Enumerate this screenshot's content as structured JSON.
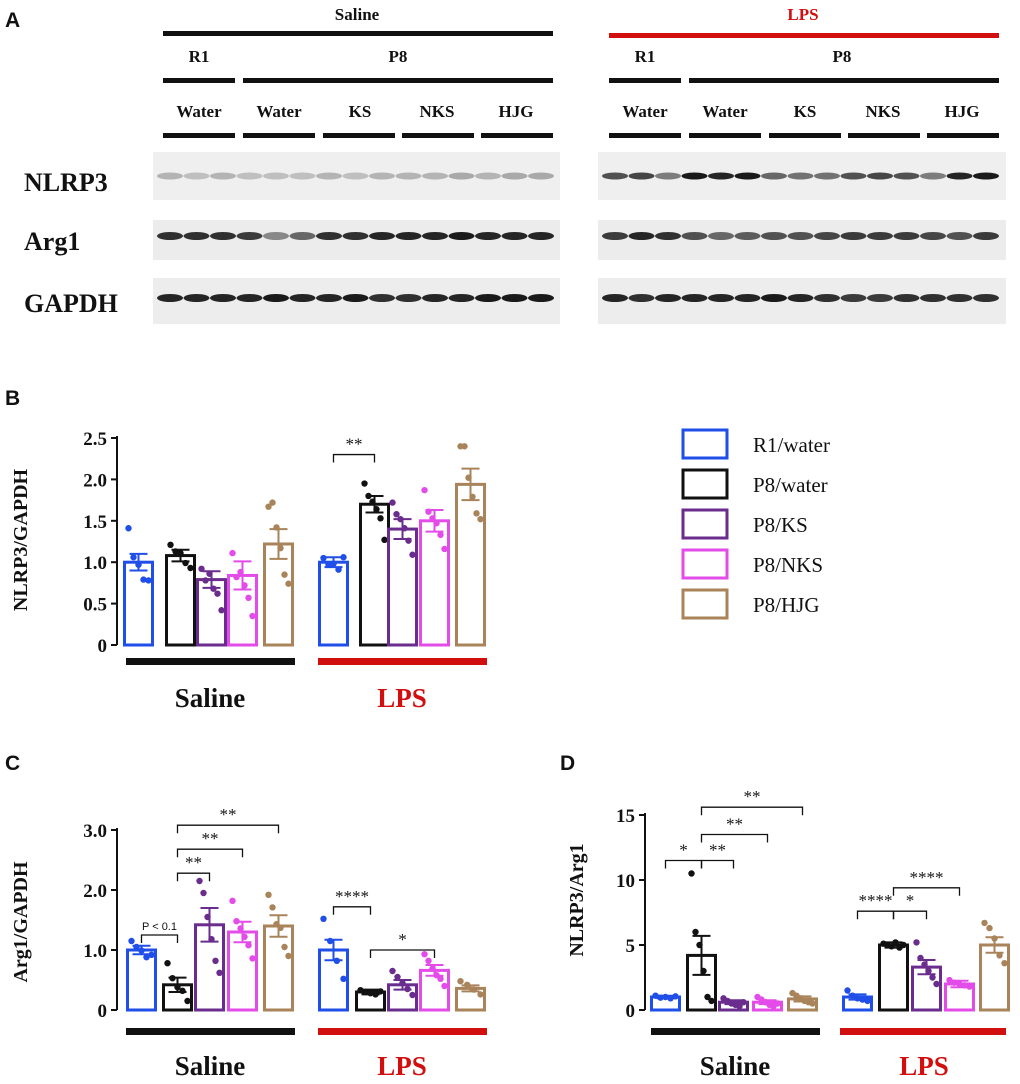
{
  "colors": {
    "R1/water": "#1f4ee8",
    "P8/water": "#111111",
    "P8/KS": "#6a2d8e",
    "P8/NKS": "#e34ce8",
    "P8/HJG": "#a9835a",
    "saline_bar": "#111111",
    "lps_bar": "#d10f0f"
  },
  "panel_a": {
    "letter": "A",
    "saline": {
      "label": "Saline",
      "r1": "R1",
      "p8": "P8",
      "lanes": [
        "Water",
        "Water",
        "KS",
        "NKS",
        "HJG"
      ]
    },
    "lps": {
      "label": "LPS",
      "r1": "R1",
      "p8": "P8",
      "lanes": [
        "Water",
        "Water",
        "KS",
        "NKS",
        "HJG"
      ]
    },
    "rows": [
      "NLRP3",
      "Arg1",
      "GAPDH"
    ]
  },
  "legend": [
    "R1/water",
    "P8/water",
    "P8/KS",
    "P8/NKS",
    "P8/HJG"
  ],
  "chart_data": [
    {
      "id": "B",
      "letter": "B",
      "type": "bar",
      "ylabel": "NLRP3/GAPDH",
      "ylim": [
        0,
        2.5
      ],
      "yticks": [
        "0",
        "0.5",
        "1.0",
        "1.5",
        "2.0",
        "2.5"
      ],
      "ytick_values": [
        0,
        0.5,
        1.0,
        1.5,
        2.0,
        2.5
      ],
      "groups": [
        "Saline",
        "LPS"
      ],
      "series": [
        "R1/water",
        "P8/water",
        "P8/KS",
        "P8/NKS",
        "P8/HJG"
      ],
      "means": [
        [
          1.0,
          1.08,
          0.79,
          0.84,
          1.22
        ],
        [
          1.0,
          1.7,
          1.4,
          1.5,
          1.94
        ]
      ],
      "sem": [
        [
          0.1,
          0.07,
          0.1,
          0.17,
          0.18
        ],
        [
          0.06,
          0.1,
          0.12,
          0.13,
          0.19
        ]
      ],
      "points": [
        [
          [
            1.41,
            1.06,
            0.97,
            0.79,
            0.78
          ],
          [
            1.21,
            1.13,
            1.11,
            0.99,
            0.93
          ],
          [
            0.92,
            0.78,
            0.86,
            0.68,
            0.62,
            0.42
          ],
          [
            1.11,
            0.82,
            0.88,
            0.72,
            0.57,
            0.35
          ],
          [
            1.67,
            1.72,
            1.42,
            1.17,
            0.85,
            0.74
          ]
        ],
        [
          [
            1.05,
            0.97,
            0.98,
            0.91,
            1.06
          ],
          [
            1.95,
            1.8,
            1.73,
            1.64,
            1.53,
            1.27
          ],
          [
            1.72,
            1.58,
            1.52,
            1.41,
            1.26,
            1.09
          ],
          [
            1.87,
            1.61,
            1.53,
            1.47,
            1.33,
            1.16
          ],
          [
            2.4,
            2.4,
            2.02,
            1.79,
            1.59,
            1.52
          ]
        ]
      ],
      "significance": [
        {
          "g1": 1,
          "i1": 0,
          "g2": 1,
          "i2": 1,
          "label": "**",
          "y": 2.3
        }
      ]
    },
    {
      "id": "C",
      "letter": "C",
      "type": "bar",
      "ylabel": "Arg1/GAPDH",
      "ylim": [
        0,
        3.0
      ],
      "yticks": [
        "0",
        "1.0",
        "2.0",
        "3.0"
      ],
      "ytick_values": [
        0,
        1.0,
        2.0,
        3.0
      ],
      "groups": [
        "Saline",
        "LPS"
      ],
      "series": [
        "R1/water",
        "P8/water",
        "P8/KS",
        "P8/NKS",
        "P8/HJG"
      ],
      "means": [
        [
          1.0,
          0.42,
          1.42,
          1.3,
          1.4
        ],
        [
          1.0,
          0.3,
          0.42,
          0.66,
          0.36
        ]
      ],
      "sem": [
        [
          0.07,
          0.12,
          0.28,
          0.17,
          0.18
        ],
        [
          0.17,
          0.04,
          0.08,
          0.09,
          0.05
        ]
      ],
      "points": [
        [
          [
            1.15,
            1.05,
            0.99,
            0.88,
            0.92
          ],
          [
            0.78,
            0.53,
            0.38,
            0.32,
            0.15
          ],
          [
            2.15,
            1.95,
            1.55,
            1.18,
            0.82,
            0.62
          ],
          [
            1.82,
            1.48,
            1.36,
            1.22,
            1.08,
            0.86
          ],
          [
            1.92,
            1.71,
            1.43,
            1.37,
            1.05,
            0.9
          ]
        ],
        [
          [
            1.52,
            1.15,
            0.82,
            0.52
          ],
          [
            0.33,
            0.3,
            0.28,
            0.26,
            0.31
          ],
          [
            0.65,
            0.55,
            0.45,
            0.35,
            0.25
          ],
          [
            0.93,
            0.82,
            0.69,
            0.58,
            0.52,
            0.4
          ],
          [
            0.48,
            0.42,
            0.34,
            0.26
          ]
        ]
      ],
      "significance": [
        {
          "g1": 0,
          "i1": 0,
          "g2": 0,
          "i2": 1,
          "label": "P < 0.1",
          "y": 1.25,
          "small": true
        },
        {
          "g1": 0,
          "i1": 1,
          "g2": 0,
          "i2": 2,
          "label": "**",
          "y": 2.28
        },
        {
          "g1": 0,
          "i1": 1,
          "g2": 0,
          "i2": 3,
          "label": "**",
          "y": 2.68
        },
        {
          "g1": 0,
          "i1": 1,
          "g2": 0,
          "i2": 4,
          "label": "**",
          "y": 3.08
        },
        {
          "g1": 1,
          "i1": 0,
          "g2": 1,
          "i2": 1,
          "label": "****",
          "y": 1.72
        },
        {
          "g1": 1,
          "i1": 1,
          "g2": 1,
          "i2": 3,
          "label": "*",
          "y": 1.0
        }
      ]
    },
    {
      "id": "D",
      "letter": "D",
      "type": "bar",
      "ylabel": "NLRP3/Arg1",
      "ylim": [
        0,
        15
      ],
      "yticks": [
        "0",
        "5",
        "10",
        "15"
      ],
      "ytick_values": [
        0,
        5,
        10,
        15
      ],
      "groups": [
        "Saline",
        "LPS"
      ],
      "series": [
        "R1/water",
        "P8/water",
        "P8/KS",
        "P8/NKS",
        "P8/HJG"
      ],
      "means": [
        [
          1.0,
          4.2,
          0.6,
          0.6,
          0.85
        ],
        [
          1.0,
          5.0,
          3.3,
          2.0,
          5.0
        ]
      ],
      "sem": [
        [
          0.1,
          1.5,
          0.15,
          0.15,
          0.2
        ],
        [
          0.2,
          0.2,
          0.55,
          0.25,
          0.6
        ]
      ],
      "points": [
        [
          [
            1.1,
            0.95,
            1.0,
            0.9,
            1.05
          ],
          [
            10.5,
            6.0,
            5.0,
            3.0,
            1.0,
            0.7
          ],
          [
            0.9,
            0.7,
            0.5,
            0.4,
            0.3,
            0.6
          ],
          [
            1.0,
            0.8,
            0.6,
            0.4,
            0.3,
            0.5
          ],
          [
            1.3,
            1.1,
            0.9,
            0.7,
            0.6,
            0.5
          ]
        ],
        [
          [
            1.5,
            1.1,
            0.9,
            0.8,
            0.7
          ],
          [
            5.1,
            5.0,
            4.9,
            5.2,
            4.8,
            5.0
          ],
          [
            5.2,
            4.0,
            3.5,
            3.0,
            2.5,
            2.0
          ],
          [
            2.3,
            2.1,
            2.0,
            1.9,
            1.8
          ],
          [
            6.7,
            6.3,
            5.5,
            4.2,
            3.6
          ]
        ]
      ],
      "significance": [
        {
          "g1": 0,
          "i1": 0,
          "g2": 0,
          "i2": 1,
          "label": "*",
          "y": 11.5
        },
        {
          "g1": 0,
          "i1": 1,
          "g2": 0,
          "i2": 2,
          "label": "**",
          "y": 11.5
        },
        {
          "g1": 0,
          "i1": 1,
          "g2": 0,
          "i2": 3,
          "label": "**",
          "y": 13.5
        },
        {
          "g1": 0,
          "i1": 1,
          "g2": 0,
          "i2": 4,
          "label": "**",
          "y": 15.6
        },
        {
          "g1": 1,
          "i1": 0,
          "g2": 1,
          "i2": 1,
          "label": "****",
          "y": 7.6
        },
        {
          "g1": 1,
          "i1": 1,
          "g2": 1,
          "i2": 2,
          "label": "*",
          "y": 7.6
        },
        {
          "g1": 1,
          "i1": 1,
          "g2": 1,
          "i2": 3,
          "label": "****",
          "y": 9.4
        }
      ]
    }
  ]
}
